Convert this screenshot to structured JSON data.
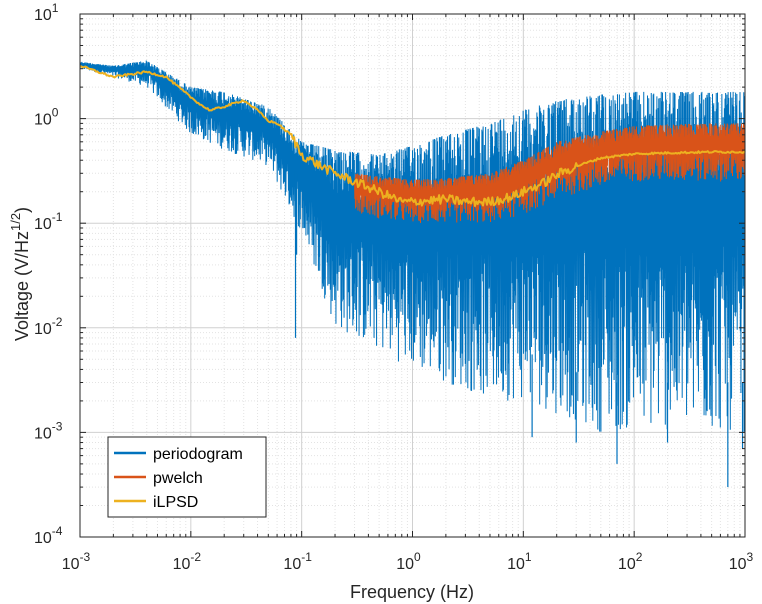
{
  "chart_data": {
    "type": "line",
    "x_scale": "log",
    "y_scale": "log",
    "xlabel": "Frequency (Hz)",
    "ylabel": "Voltage (V/Hz",
    "ylabel_sup": "1/2",
    "ylabel_close": ")",
    "xlim": [
      0.001,
      1000
    ],
    "ylim": [
      0.0001,
      10
    ],
    "x_ticks": [
      {
        "mant": "10",
        "exp": "-3",
        "value": 0.001
      },
      {
        "mant": "10",
        "exp": "-2",
        "value": 0.01
      },
      {
        "mant": "10",
        "exp": "-1",
        "value": 0.1
      },
      {
        "mant": "10",
        "exp": "0",
        "value": 1
      },
      {
        "mant": "10",
        "exp": "1",
        "value": 10
      },
      {
        "mant": "10",
        "exp": "2",
        "value": 100
      },
      {
        "mant": "10",
        "exp": "3",
        "value": 1000
      }
    ],
    "y_ticks": [
      {
        "mant": "10",
        "exp": "-4",
        "value": 0.0001
      },
      {
        "mant": "10",
        "exp": "-3",
        "value": 0.001
      },
      {
        "mant": "10",
        "exp": "-2",
        "value": 0.01
      },
      {
        "mant": "10",
        "exp": "-1",
        "value": 0.1
      },
      {
        "mant": "10",
        "exp": "0",
        "value": 1
      },
      {
        "mant": "10",
        "exp": "1",
        "value": 10
      }
    ],
    "grid": true,
    "minor_grid": true,
    "legend_position": "bottom-left",
    "series": [
      {
        "name": "periodogram",
        "color": "#0072BD",
        "style": "noisy band",
        "x": [
          0.001,
          0.002,
          0.004,
          0.01,
          0.02,
          0.05,
          0.1,
          0.2,
          0.5,
          1,
          2,
          5,
          10,
          20,
          50,
          100,
          200,
          500,
          1000
        ],
        "upper": [
          3.5,
          3.2,
          3.6,
          2.0,
          1.8,
          1.3,
          0.6,
          0.5,
          0.45,
          0.55,
          0.7,
          0.9,
          1.2,
          1.5,
          1.7,
          1.8,
          1.8,
          1.8,
          1.8
        ],
        "lower": [
          3.0,
          2.5,
          2.0,
          0.7,
          0.5,
          0.35,
          0.08,
          0.01,
          0.006,
          0.004,
          0.003,
          0.002,
          0.002,
          0.0015,
          0.001,
          0.001,
          0.001,
          0.001,
          0.001
        ],
        "spikes": [
          {
            "x": 0.088,
            "y": 0.008
          },
          {
            "x": 0.09,
            "y": 0.05
          },
          {
            "x": 12,
            "y": 0.0009
          },
          {
            "x": 30,
            "y": 0.0008
          },
          {
            "x": 70,
            "y": 0.0005
          },
          {
            "x": 200,
            "y": 0.0008
          },
          {
            "x": 700,
            "y": 0.0003
          },
          {
            "x": 950,
            "y": 0.0007
          }
        ]
      },
      {
        "name": "pwelch",
        "color": "#D95319",
        "style": "noisy band",
        "x": [
          0.3,
          0.5,
          1,
          2,
          5,
          10,
          20,
          50,
          100,
          200,
          500,
          1000
        ],
        "upper": [
          0.3,
          0.28,
          0.26,
          0.27,
          0.3,
          0.4,
          0.6,
          0.75,
          0.85,
          0.88,
          0.9,
          0.9
        ],
        "lower": [
          0.13,
          0.11,
          0.1,
          0.1,
          0.1,
          0.12,
          0.17,
          0.22,
          0.25,
          0.25,
          0.25,
          0.25
        ]
      },
      {
        "name": "iLPSD",
        "color": "#EDB120",
        "style": "line",
        "x": [
          0.001,
          0.002,
          0.004,
          0.006,
          0.01,
          0.013,
          0.015,
          0.02,
          0.03,
          0.04,
          0.05,
          0.06,
          0.08,
          0.1,
          0.15,
          0.2,
          0.3,
          0.5,
          0.8,
          1,
          2,
          3,
          5,
          8,
          10,
          15,
          20,
          30,
          50,
          100,
          200,
          500,
          1000
        ],
        "y": [
          3.2,
          2.5,
          2.8,
          2.5,
          1.6,
          1.3,
          1.2,
          1.3,
          1.5,
          1.2,
          0.95,
          0.9,
          0.7,
          0.45,
          0.35,
          0.3,
          0.25,
          0.2,
          0.16,
          0.16,
          0.17,
          0.16,
          0.16,
          0.18,
          0.2,
          0.24,
          0.29,
          0.35,
          0.42,
          0.46,
          0.47,
          0.48,
          0.48
        ]
      }
    ]
  }
}
